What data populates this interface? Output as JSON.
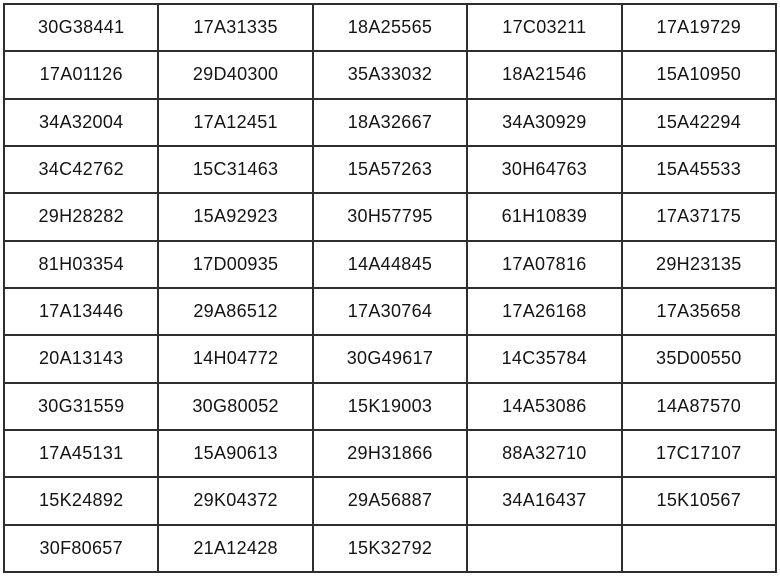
{
  "colors": {
    "background": "#ffffff",
    "border": "#2e2e2e",
    "text": "#141414"
  },
  "table": {
    "columns": 5,
    "row_count": 12,
    "rows": [
      [
        "30G38441",
        "17A31335",
        "18A25565",
        "17C03211",
        "17A19729"
      ],
      [
        "17A01126",
        "29D40300",
        "35A33032",
        "18A21546",
        "15A10950"
      ],
      [
        "34A32004",
        "17A12451",
        "18A32667",
        "34A30929",
        "15A42294"
      ],
      [
        "34C42762",
        "15C31463",
        "15A57263",
        "30H64763",
        "15A45533"
      ],
      [
        "29H28282",
        "15A92923",
        "30H57795",
        "61H10839",
        "17A37175"
      ],
      [
        "81H03354",
        "17D00935",
        "14A44845",
        "17A07816",
        "29H23135"
      ],
      [
        "17A13446",
        "29A86512",
        "17A30764",
        "17A26168",
        "17A35658"
      ],
      [
        "20A13143",
        "14H04772",
        "30G49617",
        "14C35784",
        "35D00550"
      ],
      [
        "30G31559",
        "30G80052",
        "15K19003",
        "14A53086",
        "14A87570"
      ],
      [
        "17A45131",
        "15A90613",
        "29H31866",
        "88A32710",
        "17C17107"
      ],
      [
        "15K24892",
        "29K04372",
        "29A56887",
        "34A16437",
        "15K10567"
      ],
      [
        "30F80657",
        "21A12428",
        "15K32792",
        "",
        ""
      ]
    ]
  }
}
